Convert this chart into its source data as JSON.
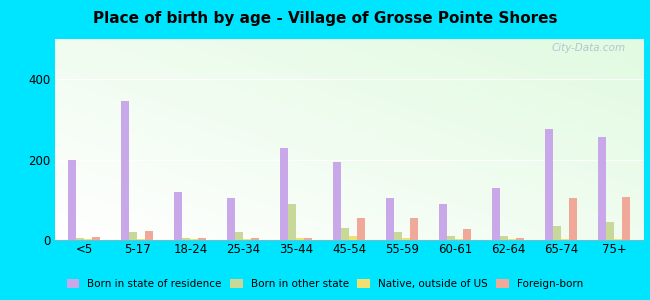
{
  "title": "Place of birth by age - Village of Grosse Pointe Shores",
  "categories": [
    "<5",
    "5-17",
    "18-24",
    "25-34",
    "35-44",
    "45-54",
    "55-59",
    "60-61",
    "62-64",
    "65-74",
    "75+"
  ],
  "series": {
    "Born in state of residence": [
      200,
      345,
      120,
      105,
      230,
      195,
      105,
      90,
      130,
      275,
      255
    ],
    "Born in other state": [
      5,
      20,
      5,
      20,
      90,
      30,
      20,
      10,
      10,
      35,
      45
    ],
    "Native, outside of US": [
      3,
      3,
      3,
      3,
      5,
      10,
      5,
      3,
      3,
      3,
      3
    ],
    "Foreign-born": [
      8,
      22,
      5,
      5,
      5,
      55,
      55,
      28,
      5,
      105,
      108
    ]
  },
  "colors": {
    "Born in state of residence": "#c8a8e8",
    "Born in other state": "#c8d898",
    "Native, outside of US": "#f0e070",
    "Foreign-born": "#f0a898"
  },
  "ylim": [
    0,
    500
  ],
  "yticks": [
    0,
    200,
    400
  ],
  "bg_outer": "#00e5ff",
  "watermark": "City-Data.com",
  "bar_width": 0.15,
  "legend_labels": [
    "Born in state of residence",
    "Born in other state",
    "Native, outside of US",
    "Foreign-born"
  ]
}
